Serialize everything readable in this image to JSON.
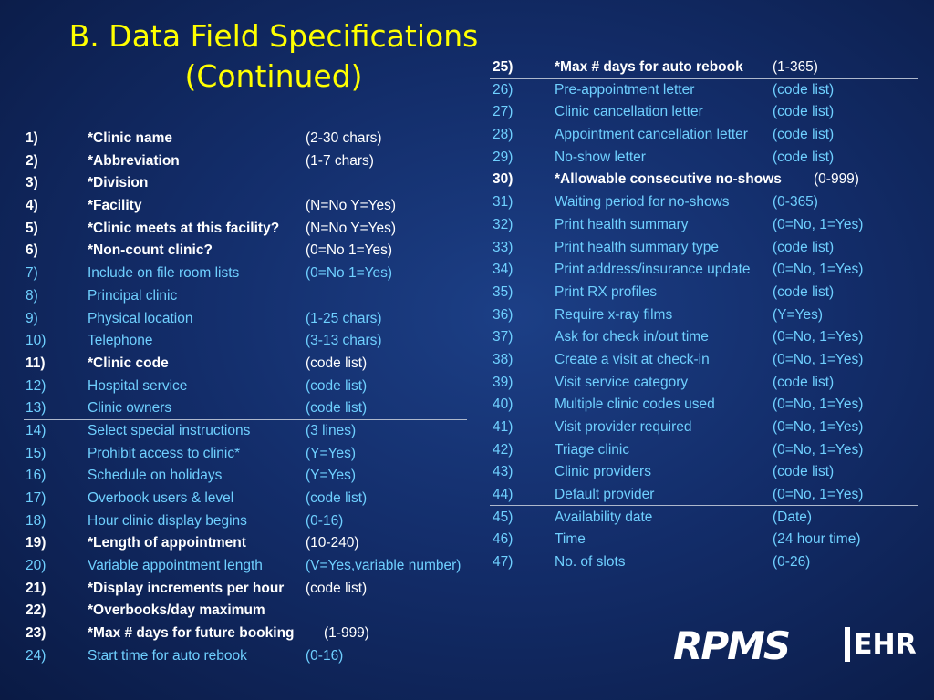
{
  "title": {
    "line1": "B. Data Field Specifications",
    "line2": "(Continued)"
  },
  "left": [
    {
      "num": "1)",
      "name": "*Clinic name",
      "value": "(2-30 chars)",
      "style": "bold"
    },
    {
      "num": "2)",
      "name": "*Abbreviation",
      "value": "(1-7 chars)",
      "style": "bold"
    },
    {
      "num": "3)",
      "name": "*Division",
      "value": "",
      "style": "bold"
    },
    {
      "num": "4)",
      "name": "*Facility",
      "value": "(N=No Y=Yes)",
      "style": "bold"
    },
    {
      "num": "5)",
      "name": "*Clinic meets at this facility?",
      "value": "(N=No Y=Yes)",
      "style": "bold"
    },
    {
      "num": "6)",
      "name": "*Non-count clinic?",
      "value": "(0=No 1=Yes)",
      "style": "bold"
    },
    {
      "num": "7)",
      "name": "Include on file room lists",
      "value": "(0=No 1=Yes)",
      "style": "cyan"
    },
    {
      "num": "8)",
      "name": "Principal clinic",
      "value": "",
      "style": "cyan"
    },
    {
      "num": "9)",
      "name": "Physical location",
      "value": "(1-25 chars)",
      "style": "cyan"
    },
    {
      "num": "10)",
      "name": "Telephone",
      "value": "(3-13 chars)",
      "style": "cyan"
    },
    {
      "num": "11)",
      "name": "*Clinic code",
      "value": "(code list)",
      "style": "bold"
    },
    {
      "num": "12)",
      "name": "Hospital service",
      "value": "(code list)",
      "style": "cyan"
    },
    {
      "num": "13)",
      "name": "Clinic owners",
      "value": "(code list)",
      "style": "cyan"
    },
    {
      "num": "14)",
      "name": "Select special instructions",
      "value": "(3 lines)",
      "style": "cyan"
    },
    {
      "num": "15)",
      "name": "Prohibit access to clinic*",
      "value": "(Y=Yes)",
      "style": "cyan"
    },
    {
      "num": "16)",
      "name": "Schedule on holidays",
      "value": "(Y=Yes)",
      "style": "cyan"
    },
    {
      "num": "17)",
      "name": "Overbook users & level",
      "value": "(code list)",
      "style": "cyan"
    },
    {
      "num": "18)",
      "name": "Hour clinic display begins",
      "value": "(0-16)",
      "style": "cyan"
    },
    {
      "num": "19)",
      "name": "*Length of appointment",
      "value": "(10-240)",
      "style": "bold"
    },
    {
      "num": "20)",
      "name": "Variable appointment length",
      "value": "(V=Yes,variable number)",
      "style": "cyan"
    },
    {
      "num": "21)",
      "name": "*Display increments per hour",
      "value": "(code list)",
      "style": "bold"
    },
    {
      "num": "22)",
      "name": "*Overbooks/day maximum",
      "value": "",
      "style": "bold"
    },
    {
      "num": "23)",
      "name": "*Max # days for future booking",
      "value": "(1-999)",
      "style": "bold"
    },
    {
      "num": "24)",
      "name": "Start time for auto rebook",
      "value": "(0-16)",
      "style": "cyan"
    }
  ],
  "right": [
    {
      "num": "25)",
      "name": "*Max # days for auto rebook",
      "value": "(1-365)",
      "style": "bold"
    },
    {
      "num": "26)",
      "name": "Pre-appointment letter",
      "value": "(code list)",
      "style": "cyan"
    },
    {
      "num": "27)",
      "name": "Clinic cancellation letter",
      "value": "(code list)",
      "style": "cyan"
    },
    {
      "num": "28)",
      "name": "Appointment cancellation letter",
      "value": "(code list)",
      "style": "cyan"
    },
    {
      "num": "29)",
      "name": "No-show letter",
      "value": "(code list)",
      "style": "cyan"
    },
    {
      "num": "30)",
      "name": "*Allowable consecutive no-shows",
      "value": "(0-999)",
      "style": "bold"
    },
    {
      "num": "31)",
      "name": "Waiting period for no-shows",
      "value": "(0-365)",
      "style": "cyan"
    },
    {
      "num": "32)",
      "name": "Print health summary",
      "value": "(0=No, 1=Yes)",
      "style": "cyan"
    },
    {
      "num": "33)",
      "name": "Print health summary type",
      "value": "(code list)",
      "style": "cyan"
    },
    {
      "num": "34)",
      "name": "Print address/insurance update",
      "value": "(0=No, 1=Yes)",
      "style": "cyan"
    },
    {
      "num": "35)",
      "name": "Print RX profiles",
      "value": "(code list)",
      "style": "cyan"
    },
    {
      "num": "36)",
      "name": "Require x-ray films",
      "value": "(Y=Yes)",
      "style": "cyan"
    },
    {
      "num": "37)",
      "name": "Ask for check in/out time",
      "value": "(0=No, 1=Yes)",
      "style": "cyan"
    },
    {
      "num": "38)",
      "name": "Create a visit at check-in",
      "value": "(0=No, 1=Yes)",
      "style": "cyan"
    },
    {
      "num": "39)",
      "name": "Visit service category",
      "value": "(code list)",
      "style": "cyan"
    },
    {
      "num": "40)",
      "name": "Multiple clinic codes used",
      "value": "(0=No, 1=Yes)",
      "style": "cyan"
    },
    {
      "num": "41)",
      "name": "Visit provider required",
      "value": "(0=No, 1=Yes)",
      "style": "cyan"
    },
    {
      "num": "42)",
      "name": "Triage clinic",
      "value": "(0=No, 1=Yes)",
      "style": "cyan"
    },
    {
      "num": "43)",
      "name": "Clinic providers",
      "value": "(code list)",
      "style": "cyan"
    },
    {
      "num": "44)",
      "name": "Default provider",
      "value": "(0=No, 1=Yes)",
      "style": "cyan"
    },
    {
      "num": "45)",
      "name": "Availability date",
      "value": "(Date)",
      "style": "cyan"
    },
    {
      "num": "46)",
      "name": "Time",
      "value": "(24 hour time)",
      "style": "cyan"
    },
    {
      "num": "47)",
      "name": "No. of slots",
      "value": "(0-26)",
      "style": "cyan"
    }
  ],
  "logo": {
    "brand": "RPMS",
    "suffix": "EHR"
  },
  "colors": {
    "background": "#132d6a",
    "title": "#ffff00",
    "cyan": "#6fd0ff",
    "white": "#ffffff"
  }
}
